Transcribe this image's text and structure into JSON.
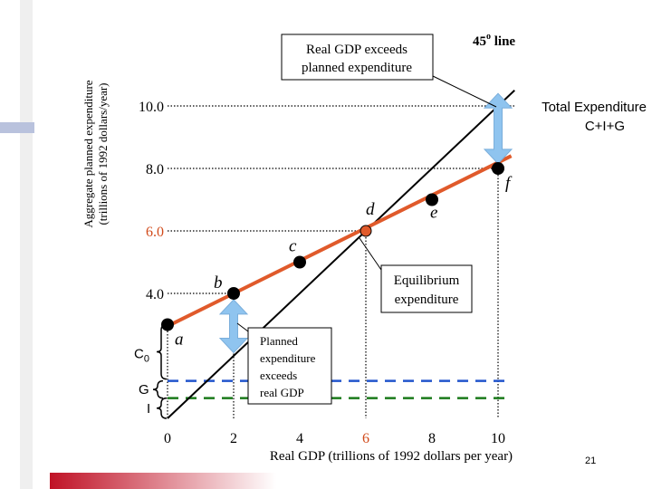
{
  "slide_number": "21",
  "chart_data": {
    "type": "line",
    "ylabel": "Aggregate planned expenditure",
    "ylabel_sub": "(trillions of 1992 dollars/year)",
    "xlabel": "Real GDP (trillions of 1992 dollars per year)",
    "xlim": [
      0,
      10.5
    ],
    "ylim": [
      0,
      11
    ],
    "x_ticks": [
      "0",
      "2",
      "4",
      "6",
      "8",
      "10"
    ],
    "y_ticks": [
      "4.0",
      "6.0",
      "8.0",
      "10.0"
    ],
    "series": [
      {
        "name": "45° line",
        "x": [
          0,
          10.5
        ],
        "y": [
          0,
          10.5
        ],
        "color": "#000000"
      },
      {
        "name": "Total Expenditure C+I+G",
        "x": [
          0,
          10.4
        ],
        "y": [
          2.95,
          8.4
        ],
        "color": "#e05a2b"
      }
    ],
    "points": [
      {
        "label": "a",
        "x": 0,
        "y": 3.0
      },
      {
        "label": "b",
        "x": 2,
        "y": 4.0
      },
      {
        "label": "c",
        "x": 4,
        "y": 5.0
      },
      {
        "label": "d",
        "x": 6,
        "y": 6.0
      },
      {
        "label": "e",
        "x": 8,
        "y": 7.0
      },
      {
        "label": "f",
        "x": 10,
        "y": 8.0
      }
    ],
    "C0_level": 3.0,
    "G_level": 1.2,
    "I_level": 0.65,
    "labels": {
      "line45": "45",
      "line45_sup": "o",
      "line45_suffix": " line",
      "total_exp_1": "Total Expenditure",
      "total_exp_2": "C+I+G",
      "c0": "C",
      "c0_sub": "0",
      "g": "G",
      "i": "I"
    },
    "callouts": {
      "exceeds": [
        "Real GDP exceeds",
        "planned expenditure"
      ],
      "equilibrium": [
        "Equilibrium",
        "expenditure"
      ],
      "planned": [
        "Planned",
        "expenditure",
        "exceeds",
        "real GDP"
      ]
    },
    "colors": {
      "expenditure_line": "#e05a2b",
      "point": "#000000",
      "equilibrium_point": "#e05a2b",
      "arrow": "#8fc4ef",
      "g_dash": "#2255cc",
      "i_dash": "#1a7a1a",
      "highlight_tick": "#d14a1a",
      "deco_red": "#c01226"
    }
  }
}
